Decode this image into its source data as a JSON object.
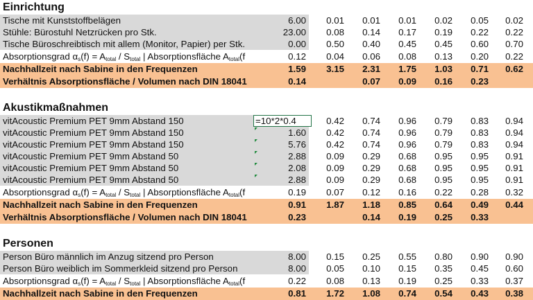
{
  "colors": {
    "highlight": "#f9c192",
    "input_fill": "#d9d9d9",
    "selection": "#217346"
  },
  "absorption_label": {
    "pre": "Absorptionsgrad α",
    "s": "s",
    "mid1": "(f) = A",
    "total": "total",
    "mid2": " / S",
    "mid3": " | Absorptionsfläche A",
    "end": "(f"
  },
  "sections": [
    {
      "title": "Einrichtung",
      "rows": [
        {
          "type": "gray",
          "label": "Tische mit Kunststoffbelägen",
          "value": "6.00",
          "freqs": [
            "0.01",
            "0.01",
            "0.01",
            "0.02",
            "0.05",
            "0.02"
          ]
        },
        {
          "type": "gray",
          "label": "Stühle: Bürostuhl Netzrücken pro Stk.",
          "value": "23.00",
          "freqs": [
            "0.08",
            "0.14",
            "0.17",
            "0.19",
            "0.22",
            "0.22"
          ]
        },
        {
          "type": "gray",
          "label": "Tische Büroschreibtisch mit allem (Monitor, Papier) per Stk.",
          "value": "0.00",
          "freqs": [
            "0.50",
            "0.40",
            "0.45",
            "0.45",
            "0.60",
            "0.70"
          ]
        },
        {
          "type": "abs",
          "value": "0.12",
          "freqs": [
            "0.04",
            "0.06",
            "0.08",
            "0.13",
            "0.20",
            "0.22"
          ]
        },
        {
          "type": "orange",
          "label": "Nachhallzeit nach Sabine in den Frequenzen",
          "value": "1.59",
          "freqs": [
            "3.15",
            "2.31",
            "1.75",
            "1.03",
            "0.71",
            "0.62"
          ]
        },
        {
          "type": "orange",
          "label": "Verhältnis Absorptionsfläche / Volumen nach DIN 18041",
          "value": "0.14",
          "freqs": [
            "",
            "0.07",
            "0.09",
            "0.16",
            "0.23",
            ""
          ]
        }
      ]
    },
    {
      "title": "Akustikmaßnahmen",
      "rows": [
        {
          "type": "gray",
          "label": "vitAcoustic Premium PET 9mm Abstand 150",
          "value": "=10*2*0.4",
          "selected": true,
          "freqs": [
            "0.42",
            "0.74",
            "0.96",
            "0.79",
            "0.83",
            "0.94"
          ]
        },
        {
          "type": "gray",
          "label": "vitAcoustic Premium PET 9mm Abstand 150",
          "value": "1.60",
          "warn": true,
          "freqs": [
            "0.42",
            "0.74",
            "0.96",
            "0.79",
            "0.83",
            "0.94"
          ]
        },
        {
          "type": "gray",
          "label": "vitAcoustic Premium PET 9mm Abstand 150",
          "value": "5.76",
          "warn": true,
          "freqs": [
            "0.42",
            "0.74",
            "0.96",
            "0.79",
            "0.83",
            "0.94"
          ]
        },
        {
          "type": "gray",
          "label": "vitAcoustic Premium PET 9mm Abstand 50",
          "value": "2.88",
          "warn": true,
          "freqs": [
            "0.09",
            "0.29",
            "0.68",
            "0.95",
            "0.95",
            "0.91"
          ]
        },
        {
          "type": "gray",
          "label": "vitAcoustic Premium PET 9mm Abstand 50",
          "value": "2.08",
          "warn": true,
          "freqs": [
            "0.09",
            "0.29",
            "0.68",
            "0.95",
            "0.95",
            "0.91"
          ]
        },
        {
          "type": "gray",
          "label": "vitAcoustic Premium PET 9mm Abstand 50",
          "value": "2.88",
          "warn": true,
          "freqs": [
            "0.09",
            "0.29",
            "0.68",
            "0.95",
            "0.95",
            "0.91"
          ]
        },
        {
          "type": "abs",
          "value": "0.19",
          "freqs": [
            "0.07",
            "0.12",
            "0.16",
            "0.22",
            "0.28",
            "0.32"
          ]
        },
        {
          "type": "orange",
          "label": "Nachhallzeit nach Sabine in den Frequenzen",
          "value": "0.91",
          "freqs": [
            "1.87",
            "1.18",
            "0.85",
            "0.64",
            "0.49",
            "0.44"
          ]
        },
        {
          "type": "orange",
          "label": "Verhältnis Absorptionsfläche / Volumen nach DIN 18041",
          "value": "0.23",
          "freqs": [
            "",
            "0.14",
            "0.19",
            "0.25",
            "0.33",
            ""
          ]
        }
      ]
    },
    {
      "title": "Personen",
      "rows": [
        {
          "type": "gray",
          "label": "Person Büro männlich im Anzug sitzend pro Person",
          "value": "8.00",
          "freqs": [
            "0.15",
            "0.25",
            "0.55",
            "0.80",
            "0.90",
            "0.90"
          ]
        },
        {
          "type": "gray",
          "label": "Person Büro weiblich im Sommerkleid sitzend pro Person",
          "value": "8.00",
          "freqs": [
            "0.05",
            "0.10",
            "0.15",
            "0.35",
            "0.45",
            "0.60"
          ]
        },
        {
          "type": "abs",
          "value": "0.22",
          "freqs": [
            "0.08",
            "0.13",
            "0.19",
            "0.25",
            "0.33",
            "0.37"
          ]
        },
        {
          "type": "orange",
          "label": "Nachhallzeit nach Sabine in den Frequenzen",
          "value": "0.81",
          "freqs": [
            "1.72",
            "1.08",
            "0.74",
            "0.54",
            "0.43",
            "0.38"
          ]
        }
      ]
    }
  ]
}
